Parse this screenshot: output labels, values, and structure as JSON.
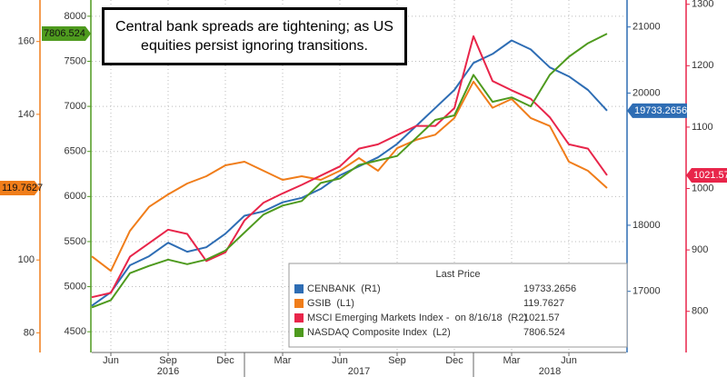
{
  "chart_data": {
    "type": "line",
    "title": "Central bank spreads are tightening; as US equities persist ignoring transitions.",
    "x": [
      "2016-05",
      "2016-06",
      "2016-07",
      "2016-08",
      "2016-09",
      "2016-10",
      "2016-11",
      "2016-12",
      "2017-01",
      "2017-02",
      "2017-03",
      "2017-04",
      "2017-05",
      "2017-06",
      "2017-07",
      "2017-08",
      "2017-09",
      "2017-10",
      "2017-11",
      "2017-12",
      "2018-01",
      "2018-02",
      "2018-03",
      "2018-04",
      "2018-05",
      "2018-06",
      "2018-07",
      "2018-08"
    ],
    "xlim": [
      "2016-05",
      "2018-09"
    ],
    "xticks": [
      {
        "value": "2016-06",
        "label": "Jun"
      },
      {
        "value": "2016-09",
        "label": "Sep"
      },
      {
        "value": "2016-12",
        "label": "Dec"
      },
      {
        "value": "2017-03",
        "label": "Mar"
      },
      {
        "value": "2017-06",
        "label": "Jun"
      },
      {
        "value": "2017-09",
        "label": "Sep"
      },
      {
        "value": "2017-12",
        "label": "Dec"
      },
      {
        "value": "2018-03",
        "label": "Mar"
      },
      {
        "value": "2018-06",
        "label": "Jun"
      }
    ],
    "years": [
      "2016",
      "2017",
      "2018"
    ],
    "grid": true,
    "axes": {
      "L1": {
        "ylim": [
          74.6,
          171.4
        ],
        "yticks": [
          80,
          100,
          140,
          160
        ],
        "color": "#f07d1a"
      },
      "L2": {
        "ylim": [
          4270,
          8180
        ],
        "yticks": [
          4500,
          5000,
          5500,
          6000,
          6500,
          7000,
          7500,
          8000
        ],
        "color": "#4e9a1e"
      },
      "R1": {
        "ylim": [
          16075,
          21408
        ],
        "yticks": [
          17000,
          18000,
          20000,
          21000
        ],
        "color": "#2e6db4"
      },
      "R2": {
        "ylim": [
          733,
          1307
        ],
        "yticks": [
          800,
          900,
          1000,
          1100,
          1200,
          1300
        ],
        "color": "#e8254a"
      }
    },
    "legend_title": "Last Price",
    "series": [
      {
        "name": "CENBANK  (R1)",
        "axis": "R1",
        "color": "#2e6db4",
        "values": [
          16782,
          16986,
          17394,
          17530,
          17735,
          17599,
          17667,
          17871,
          18143,
          18211,
          18347,
          18415,
          18551,
          18755,
          18891,
          19027,
          19231,
          19503,
          19775,
          20047,
          20456,
          20592,
          20796,
          20660,
          20388,
          20252,
          20047,
          19733.2656
        ]
      },
      {
        "name": "GSIB  (L1)",
        "axis": "L1",
        "color": "#f07d1a",
        "values": [
          101,
          97,
          108,
          114.6,
          118,
          121,
          123,
          126,
          127,
          124.5,
          122,
          123,
          122,
          124.5,
          128,
          124.5,
          130.7,
          133,
          134.4,
          139,
          149,
          141.8,
          144.2,
          139,
          136.8,
          127,
          124.5,
          119.7627
        ]
      },
      {
        "name": "MSCI Emerging Markets Index -  on 8/16/18  (R2)",
        "axis": "R2",
        "color": "#e8254a",
        "values": [
          823,
          830,
          889,
          911,
          933,
          926,
          882,
          896,
          948,
          977,
          992,
          1006,
          1021,
          1036,
          1065,
          1072,
          1087,
          1102,
          1102,
          1131,
          1248,
          1175,
          1160,
          1146,
          1116,
          1072,
          1065,
          1021.57
        ]
      },
      {
        "name": "NASDAQ Composite Index  (L2)",
        "axis": "L2",
        "color": "#4e9a1e",
        "values": [
          4770,
          4850,
          5150,
          5230,
          5300,
          5250,
          5300,
          5400,
          5600,
          5800,
          5900,
          5950,
          6150,
          6200,
          6350,
          6400,
          6450,
          6650,
          6850,
          6900,
          7350,
          7050,
          7100,
          7000,
          7350,
          7550,
          7700,
          7806.524
        ]
      }
    ]
  }
}
